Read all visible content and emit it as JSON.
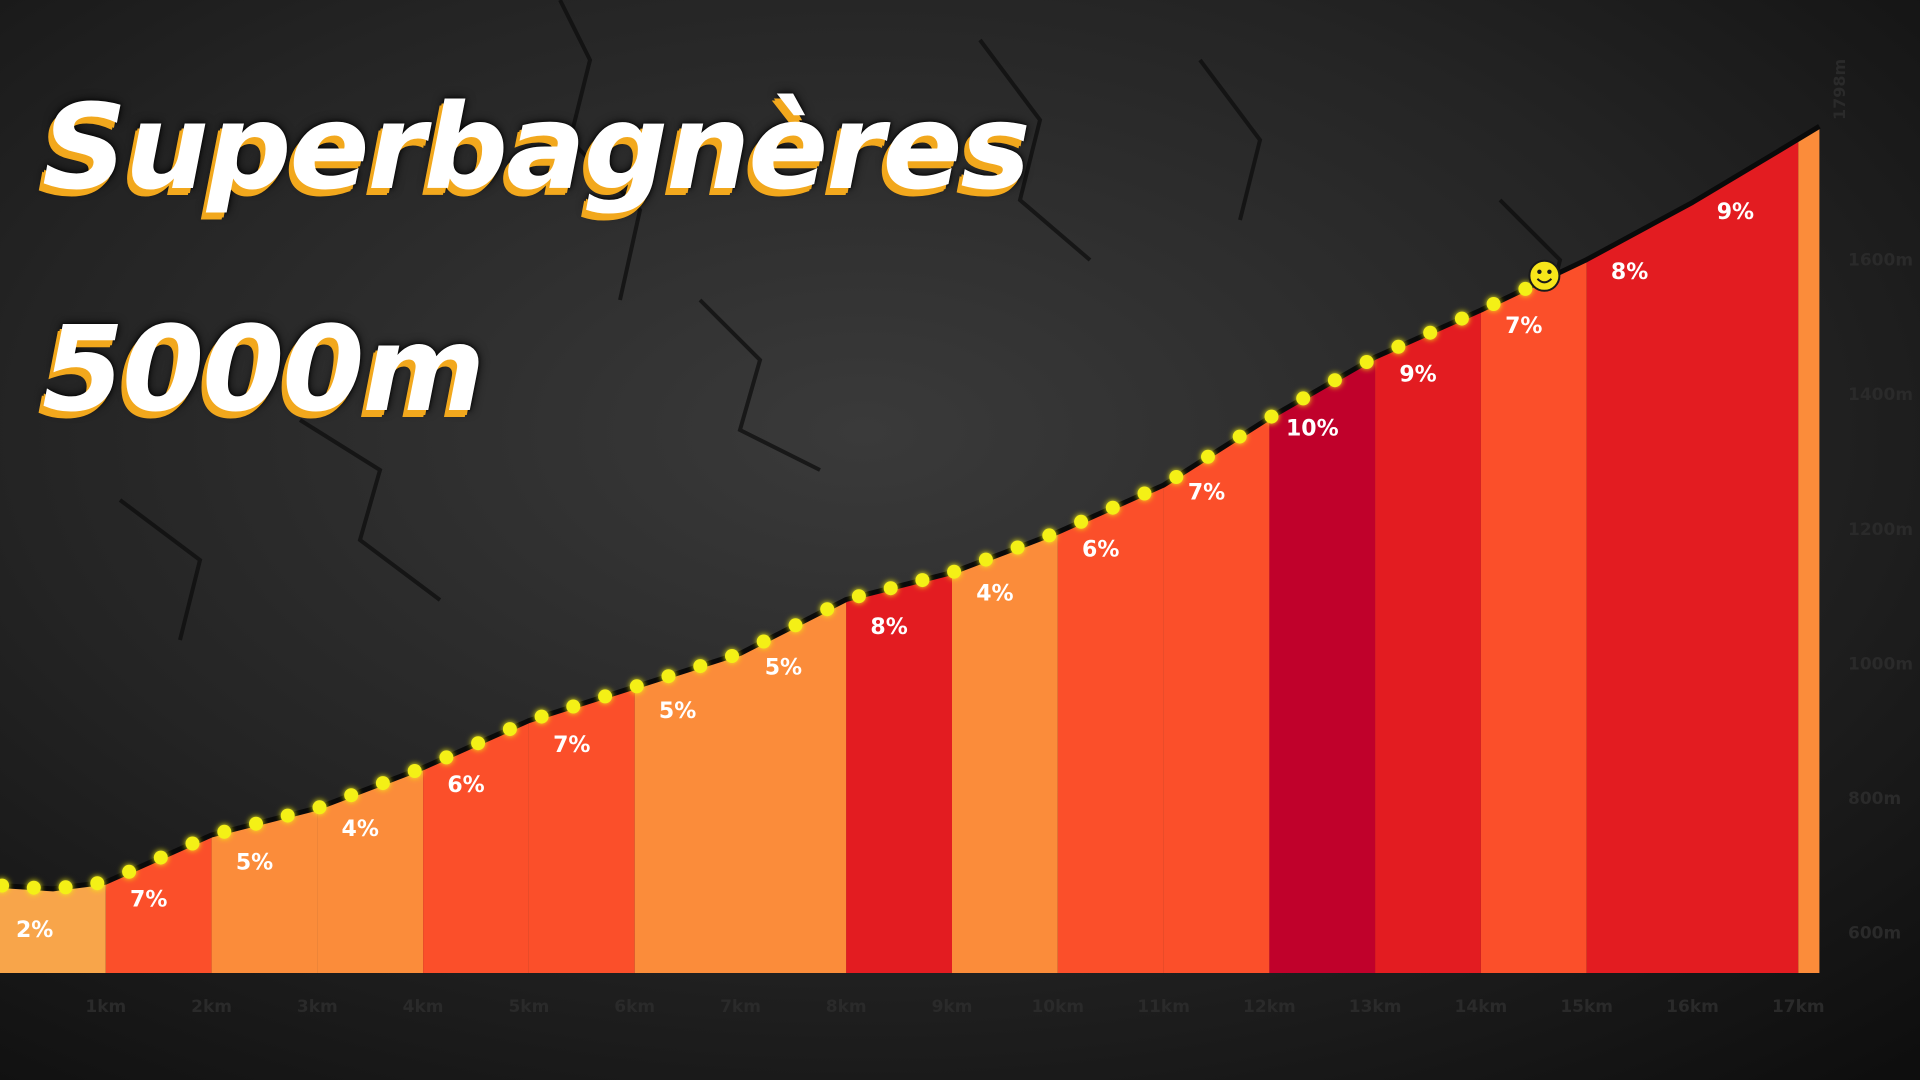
{
  "title": {
    "line1": "Superbagnères",
    "line2": "5000m"
  },
  "colors": {
    "background": "#171717",
    "title_text": "#ffffff",
    "title_shadow": "#f2a81d",
    "profile_line": "#0a0a0a",
    "progress_dots": "#f4f018",
    "grade_2": "#f8a54a",
    "grade_4": "#fb8c3a",
    "grade_5": "#fb8c3a",
    "grade_6": "#fb4f2a",
    "grade_7": "#fb4f2a",
    "grade_8": "#e31c21",
    "grade_9": "#e31c21",
    "grade_10": "#c0012b",
    "summit_strip": "#fb8c3a"
  },
  "icons": {
    "rider_marker": "smiley-icon"
  },
  "chart_data": {
    "type": "area",
    "title": "",
    "xlabel": "",
    "ylabel": "",
    "xlim": [
      0,
      17.3
    ],
    "ylim": [
      540,
      1800
    ],
    "x_ticks": [
      "1km",
      "2km",
      "3km",
      "4km",
      "5km",
      "6km",
      "7km",
      "8km",
      "9km",
      "10km",
      "11km",
      "12km",
      "13km",
      "14km",
      "15km",
      "16km",
      "17km"
    ],
    "y_ticks": [
      "600m",
      "800m",
      "1000m",
      "1200m",
      "1400m",
      "1600m"
    ],
    "summit_label": "1798m",
    "profile": {
      "x": [
        0,
        0.5,
        1,
        2,
        3,
        4,
        5,
        6,
        7,
        8,
        9,
        10,
        11,
        12,
        13,
        14,
        15,
        16,
        16.8,
        17.2
      ],
      "y": [
        670,
        665,
        675,
        745,
        785,
        845,
        915,
        965,
        1015,
        1095,
        1135,
        1195,
        1265,
        1365,
        1455,
        1525,
        1600,
        1685,
        1760,
        1798
      ]
    },
    "segments": [
      {
        "start": 0,
        "end": 1,
        "grade": 2,
        "label": "2%"
      },
      {
        "start": 1,
        "end": 2,
        "grade": 7,
        "label": "7%"
      },
      {
        "start": 2,
        "end": 3,
        "grade": 5,
        "label": "5%"
      },
      {
        "start": 3,
        "end": 4,
        "grade": 4,
        "label": "4%"
      },
      {
        "start": 4,
        "end": 5,
        "grade": 6,
        "label": "6%"
      },
      {
        "start": 5,
        "end": 6,
        "grade": 7,
        "label": "7%"
      },
      {
        "start": 6,
        "end": 7,
        "grade": 5,
        "label": "5%"
      },
      {
        "start": 7,
        "end": 8,
        "grade": 5,
        "label": "5%"
      },
      {
        "start": 8,
        "end": 9,
        "grade": 8,
        "label": "8%"
      },
      {
        "start": 9,
        "end": 10,
        "grade": 4,
        "label": "4%"
      },
      {
        "start": 10,
        "end": 11,
        "grade": 6,
        "label": "6%"
      },
      {
        "start": 11,
        "end": 12,
        "grade": 7,
        "label": "7%"
      },
      {
        "start": 12,
        "end": 13,
        "grade": 10,
        "label": "10%"
      },
      {
        "start": 13,
        "end": 14,
        "grade": 9,
        "label": "9%"
      },
      {
        "start": 14,
        "end": 15,
        "grade": 7,
        "label": "7%"
      },
      {
        "start": 15,
        "end": 16,
        "grade": 8,
        "label": "8%"
      },
      {
        "start": 16,
        "end": 17,
        "grade": 9,
        "label": "9%"
      },
      {
        "start": 17,
        "end": 17.2,
        "grade": 5,
        "label": ""
      }
    ],
    "rider_position_km": 14.6,
    "grid": false,
    "legend": "none"
  }
}
